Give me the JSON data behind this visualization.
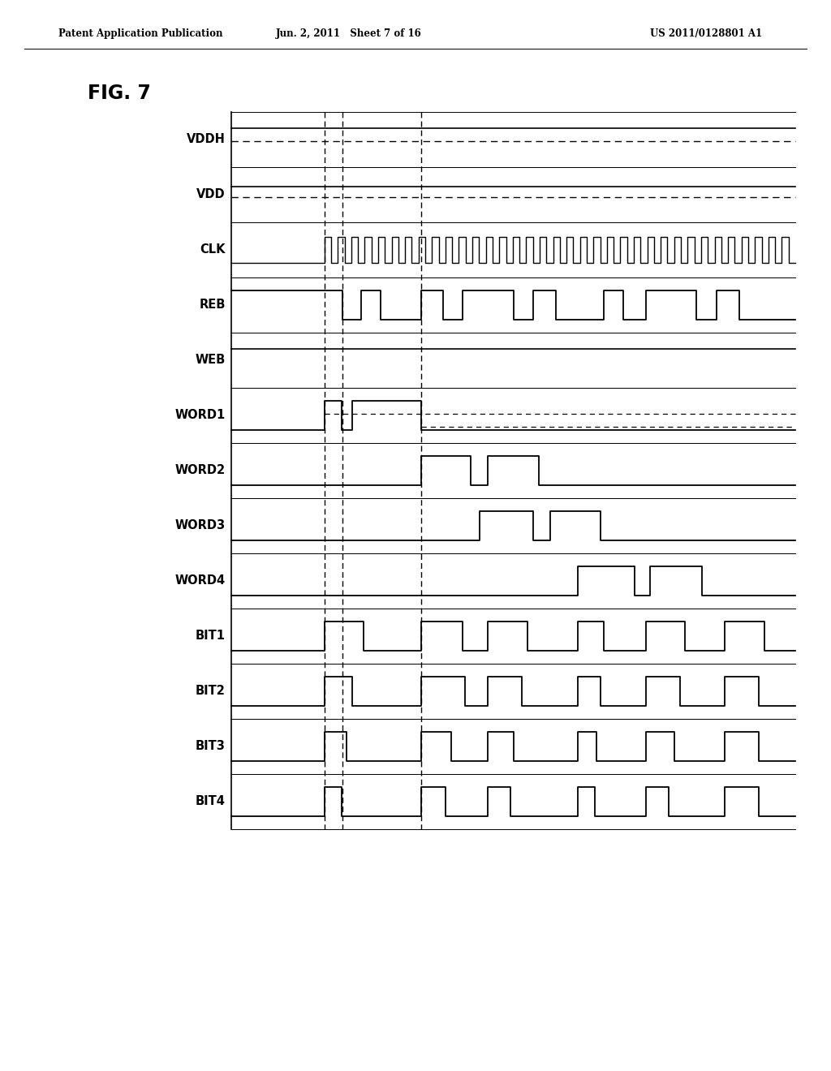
{
  "header_left": "Patent Application Publication",
  "header_center": "Jun. 2, 2011   Sheet 7 of 16",
  "header_right": "US 2011/0128801 A1",
  "fig_label": "FIG. 7",
  "signals": [
    "VDDH",
    "VDD",
    "CLK",
    "REB",
    "WEB",
    "WORD1",
    "WORD2",
    "WORD3",
    "WORD4",
    "BIT1",
    "BIT2",
    "BIT3",
    "BIT4"
  ],
  "bg_color": "#ffffff"
}
